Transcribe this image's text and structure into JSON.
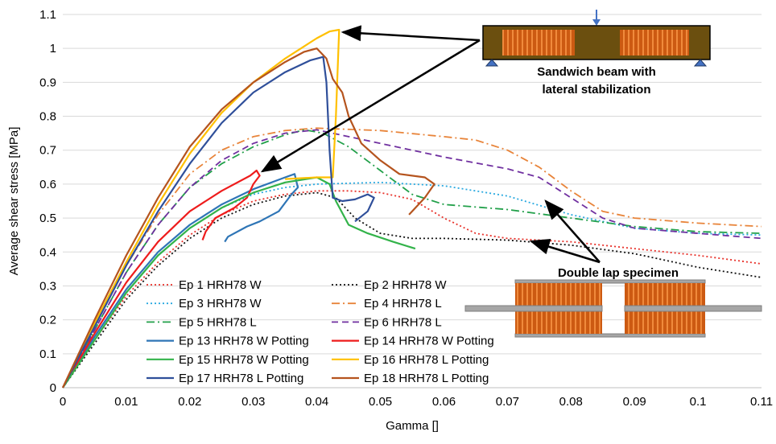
{
  "chart_data": {
    "type": "line",
    "title": "",
    "xlabel": "Gamma []",
    "ylabel": "Average shear stress [MPa]",
    "xlim": [
      0,
      0.11
    ],
    "ylim": [
      0,
      1.1
    ],
    "xticks": [
      0,
      0.01,
      0.02,
      0.03,
      0.04,
      0.05,
      0.06,
      0.07,
      0.08,
      0.09,
      0.1,
      0.11
    ],
    "xtick_labels": [
      "0",
      "0.01",
      "0.02",
      "0.03",
      "0.04",
      "0.05",
      "0.06",
      "0.07",
      "0.08",
      "0.09",
      "0.1",
      "0.11"
    ],
    "yticks": [
      0,
      0.1,
      0.2,
      0.3,
      0.4,
      0.5,
      0.6,
      0.7,
      0.8,
      0.9,
      1,
      1.1
    ],
    "ytick_labels": [
      "0",
      "0.1",
      "0.2",
      "0.3",
      "0.4",
      "0.5",
      "0.6",
      "0.7",
      "0.8",
      "0.9",
      "1",
      "1.1"
    ],
    "grid": "horizontal",
    "legend_position": "bottom-left inside",
    "series": [
      {
        "name": "Ep 1 HRH78 W",
        "color": "#e8312a",
        "dash": "dot",
        "points": [
          [
            0,
            0
          ],
          [
            0.005,
            0.14
          ],
          [
            0.01,
            0.27
          ],
          [
            0.015,
            0.37
          ],
          [
            0.02,
            0.45
          ],
          [
            0.025,
            0.51
          ],
          [
            0.03,
            0.55
          ],
          [
            0.035,
            0.57
          ],
          [
            0.04,
            0.58
          ],
          [
            0.045,
            0.58
          ],
          [
            0.05,
            0.575
          ],
          [
            0.055,
            0.555
          ],
          [
            0.06,
            0.5
          ],
          [
            0.065,
            0.455
          ],
          [
            0.07,
            0.44
          ],
          [
            0.08,
            0.43
          ],
          [
            0.09,
            0.41
          ],
          [
            0.1,
            0.39
          ],
          [
            0.11,
            0.365
          ]
        ]
      },
      {
        "name": "Ep 2 HRH78 W",
        "color": "#111111",
        "dash": "dot",
        "points": [
          [
            0,
            0
          ],
          [
            0.005,
            0.13
          ],
          [
            0.01,
            0.26
          ],
          [
            0.015,
            0.36
          ],
          [
            0.02,
            0.44
          ],
          [
            0.025,
            0.5
          ],
          [
            0.03,
            0.54
          ],
          [
            0.035,
            0.565
          ],
          [
            0.04,
            0.575
          ],
          [
            0.043,
            0.56
          ],
          [
            0.046,
            0.5
          ],
          [
            0.05,
            0.455
          ],
          [
            0.055,
            0.44
          ],
          [
            0.06,
            0.44
          ],
          [
            0.07,
            0.435
          ],
          [
            0.08,
            0.42
          ],
          [
            0.09,
            0.395
          ],
          [
            0.1,
            0.355
          ],
          [
            0.11,
            0.325
          ]
        ]
      },
      {
        "name": "Ep 3 HRH78 W",
        "color": "#29a9e0",
        "dash": "dot",
        "points": [
          [
            0,
            0
          ],
          [
            0.005,
            0.14
          ],
          [
            0.01,
            0.28
          ],
          [
            0.015,
            0.39
          ],
          [
            0.02,
            0.47
          ],
          [
            0.025,
            0.53
          ],
          [
            0.03,
            0.57
          ],
          [
            0.035,
            0.59
          ],
          [
            0.04,
            0.6
          ],
          [
            0.05,
            0.605
          ],
          [
            0.06,
            0.595
          ],
          [
            0.07,
            0.565
          ],
          [
            0.08,
            0.51
          ],
          [
            0.09,
            0.47
          ],
          [
            0.1,
            0.455
          ],
          [
            0.11,
            0.45
          ]
        ]
      },
      {
        "name": "Ep 4 HRH78 L",
        "color": "#e8843a",
        "dash": "dashdot",
        "points": [
          [
            0,
            0
          ],
          [
            0.005,
            0.18
          ],
          [
            0.01,
            0.36
          ],
          [
            0.015,
            0.51
          ],
          [
            0.02,
            0.63
          ],
          [
            0.025,
            0.7
          ],
          [
            0.03,
            0.74
          ],
          [
            0.035,
            0.758
          ],
          [
            0.04,
            0.765
          ],
          [
            0.05,
            0.758
          ],
          [
            0.06,
            0.74
          ],
          [
            0.065,
            0.73
          ],
          [
            0.07,
            0.7
          ],
          [
            0.075,
            0.65
          ],
          [
            0.08,
            0.58
          ],
          [
            0.085,
            0.52
          ],
          [
            0.09,
            0.5
          ],
          [
            0.1,
            0.485
          ],
          [
            0.11,
            0.475
          ]
        ]
      },
      {
        "name": "Ep 5 HRH78 L",
        "color": "#22a04a",
        "dash": "dashdot",
        "points": [
          [
            0,
            0
          ],
          [
            0.005,
            0.17
          ],
          [
            0.01,
            0.34
          ],
          [
            0.015,
            0.48
          ],
          [
            0.02,
            0.59
          ],
          [
            0.025,
            0.66
          ],
          [
            0.03,
            0.71
          ],
          [
            0.035,
            0.745
          ],
          [
            0.038,
            0.76
          ],
          [
            0.041,
            0.75
          ],
          [
            0.045,
            0.71
          ],
          [
            0.05,
            0.64
          ],
          [
            0.055,
            0.57
          ],
          [
            0.06,
            0.54
          ],
          [
            0.07,
            0.525
          ],
          [
            0.08,
            0.5
          ],
          [
            0.09,
            0.475
          ],
          [
            0.1,
            0.46
          ],
          [
            0.11,
            0.455
          ]
        ]
      },
      {
        "name": "Ep 6 HRH78 L",
        "color": "#7030a0",
        "dash": "dash",
        "points": [
          [
            0,
            0
          ],
          [
            0.005,
            0.17
          ],
          [
            0.01,
            0.34
          ],
          [
            0.015,
            0.48
          ],
          [
            0.02,
            0.59
          ],
          [
            0.025,
            0.67
          ],
          [
            0.03,
            0.72
          ],
          [
            0.035,
            0.75
          ],
          [
            0.04,
            0.76
          ],
          [
            0.05,
            0.72
          ],
          [
            0.06,
            0.68
          ],
          [
            0.07,
            0.645
          ],
          [
            0.075,
            0.62
          ],
          [
            0.08,
            0.56
          ],
          [
            0.085,
            0.5
          ],
          [
            0.09,
            0.47
          ],
          [
            0.1,
            0.455
          ],
          [
            0.11,
            0.44
          ]
        ]
      },
      {
        "name": "Ep 13 HRH78 W Potting",
        "color": "#2e75b6",
        "dash": "solid",
        "points": [
          [
            0,
            0
          ],
          [
            0.005,
            0.15
          ],
          [
            0.01,
            0.29
          ],
          [
            0.015,
            0.4
          ],
          [
            0.02,
            0.48
          ],
          [
            0.025,
            0.54
          ],
          [
            0.03,
            0.585
          ],
          [
            0.035,
            0.62
          ],
          [
            0.0365,
            0.63
          ],
          [
            0.037,
            0.59
          ],
          [
            0.036,
            0.57
          ],
          [
            0.034,
            0.52
          ],
          [
            0.031,
            0.49
          ],
          [
            0.029,
            0.475
          ],
          [
            0.026,
            0.445
          ],
          [
            0.0255,
            0.43
          ]
        ]
      },
      {
        "name": "Ep 14 HRH78 W Potting",
        "color": "#ee1c1c",
        "dash": "solid",
        "points": [
          [
            0,
            0
          ],
          [
            0.005,
            0.16
          ],
          [
            0.01,
            0.31
          ],
          [
            0.015,
            0.43
          ],
          [
            0.02,
            0.52
          ],
          [
            0.025,
            0.58
          ],
          [
            0.0295,
            0.625
          ],
          [
            0.0305,
            0.64
          ],
          [
            0.031,
            0.625
          ],
          [
            0.03,
            0.6
          ],
          [
            0.029,
            0.56
          ],
          [
            0.027,
            0.53
          ],
          [
            0.024,
            0.5
          ],
          [
            0.0225,
            0.46
          ],
          [
            0.022,
            0.435
          ]
        ]
      },
      {
        "name": "Ep 15 HRH78 W Potting",
        "color": "#33b34a",
        "dash": "solid",
        "points": [
          [
            0,
            0
          ],
          [
            0.005,
            0.14
          ],
          [
            0.01,
            0.28
          ],
          [
            0.015,
            0.39
          ],
          [
            0.02,
            0.47
          ],
          [
            0.025,
            0.53
          ],
          [
            0.03,
            0.575
          ],
          [
            0.035,
            0.605
          ],
          [
            0.04,
            0.62
          ],
          [
            0.042,
            0.6
          ],
          [
            0.043,
            0.55
          ],
          [
            0.045,
            0.48
          ],
          [
            0.048,
            0.455
          ],
          [
            0.052,
            0.43
          ],
          [
            0.0555,
            0.41
          ]
        ]
      },
      {
        "name": "Ep 16 HRH78 L Potting",
        "color": "#ffc000",
        "dash": "solid",
        "points": [
          [
            0,
            0
          ],
          [
            0.005,
            0.19
          ],
          [
            0.01,
            0.37
          ],
          [
            0.015,
            0.54
          ],
          [
            0.02,
            0.69
          ],
          [
            0.025,
            0.81
          ],
          [
            0.03,
            0.9
          ],
          [
            0.035,
            0.97
          ],
          [
            0.04,
            1.03
          ],
          [
            0.042,
            1.05
          ],
          [
            0.0435,
            1.055
          ],
          [
            0.043,
            0.8
          ],
          [
            0.0425,
            0.62
          ],
          [
            0.04,
            0.62
          ],
          [
            0.035,
            0.615
          ]
        ]
      },
      {
        "name": "Ep 17 HRH78 L Potting",
        "color": "#2f4f9a",
        "dash": "solid",
        "points": [
          [
            0,
            0
          ],
          [
            0.005,
            0.18
          ],
          [
            0.01,
            0.36
          ],
          [
            0.015,
            0.52
          ],
          [
            0.02,
            0.66
          ],
          [
            0.025,
            0.78
          ],
          [
            0.03,
            0.87
          ],
          [
            0.035,
            0.93
          ],
          [
            0.039,
            0.965
          ],
          [
            0.041,
            0.975
          ],
          [
            0.0415,
            0.9
          ],
          [
            0.042,
            0.7
          ],
          [
            0.0425,
            0.56
          ],
          [
            0.044,
            0.55
          ],
          [
            0.046,
            0.555
          ],
          [
            0.048,
            0.57
          ],
          [
            0.049,
            0.56
          ],
          [
            0.048,
            0.52
          ],
          [
            0.046,
            0.49
          ]
        ]
      },
      {
        "name": "Ep 18 HRH78 L Potting",
        "color": "#b5541e",
        "dash": "solid",
        "points": [
          [
            0,
            0
          ],
          [
            0.005,
            0.2
          ],
          [
            0.01,
            0.39
          ],
          [
            0.015,
            0.56
          ],
          [
            0.02,
            0.71
          ],
          [
            0.025,
            0.82
          ],
          [
            0.03,
            0.9
          ],
          [
            0.035,
            0.96
          ],
          [
            0.038,
            0.99
          ],
          [
            0.04,
            1.0
          ],
          [
            0.0415,
            0.97
          ],
          [
            0.0425,
            0.91
          ],
          [
            0.044,
            0.87
          ],
          [
            0.045,
            0.8
          ],
          [
            0.047,
            0.72
          ],
          [
            0.05,
            0.67
          ],
          [
            0.053,
            0.63
          ],
          [
            0.057,
            0.62
          ],
          [
            0.0585,
            0.6
          ],
          [
            0.057,
            0.56
          ],
          [
            0.0545,
            0.51
          ]
        ]
      }
    ],
    "annotations": [
      {
        "text": "Sandwich beam with"
      },
      {
        "text": "lateral stabilization"
      },
      {
        "text": "Double lap specimen"
      }
    ]
  }
}
